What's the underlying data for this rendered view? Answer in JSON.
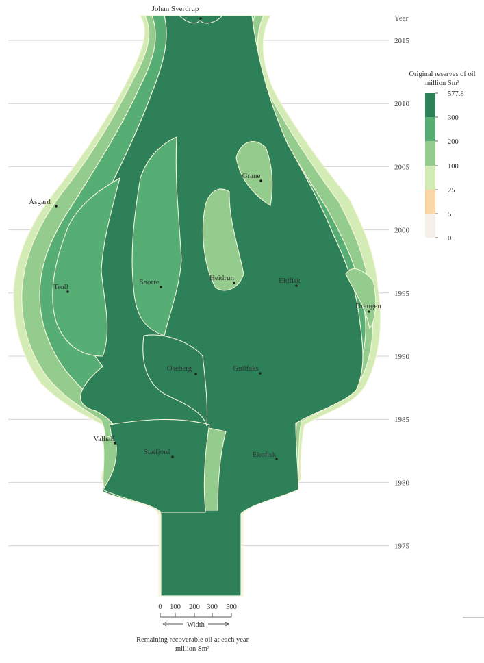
{
  "chart_data": {
    "type": "area",
    "y_axis": {
      "title": "Year",
      "ticks": [
        1975,
        1980,
        1985,
        1990,
        1995,
        2000,
        2005,
        2010,
        2015
      ],
      "range": [
        1971,
        2018
      ]
    },
    "fields": [
      {
        "name": "Johan Sverdrup",
        "label_year": 2018,
        "color": "#2e8059"
      },
      {
        "name": "Åsgard",
        "label_year": 2001.5,
        "color": "#93cc8c"
      },
      {
        "name": "Grane",
        "label_year": 2004.5,
        "color": "#93cc8c"
      },
      {
        "name": "Troll",
        "label_year": 1995.5,
        "color": "#57ae74"
      },
      {
        "name": "Snorre",
        "label_year": 1995.7,
        "color": "#57ae74"
      },
      {
        "name": "Heidrun",
        "label_year": 1995.8,
        "color": "#93cc8c"
      },
      {
        "name": "Eldfisk",
        "label_year": 1995.7,
        "color": "#2e8059"
      },
      {
        "name": "Draugen",
        "label_year": 1994.2,
        "color": "#93cc8c"
      },
      {
        "name": "Oseberg",
        "label_year": 1988.8,
        "color": "#2e8059"
      },
      {
        "name": "Gullfaks",
        "label_year": 1988.8,
        "color": "#2e8059"
      },
      {
        "name": "Valhall",
        "label_year": 1983.2,
        "color": "#93cc8c"
      },
      {
        "name": "Statfjord",
        "label_year": 1982.2,
        "color": "#2e8059"
      },
      {
        "name": "Ekofisk",
        "label_year": 1982,
        "color": "#2e8059"
      }
    ],
    "legend": {
      "title_line1": "Original reserves of oil",
      "title_line2": "million Sm³",
      "placement": "right",
      "bins": [
        {
          "from": 300,
          "to": 577.8,
          "color": "#2e8059"
        },
        {
          "from": 200,
          "to": 300,
          "color": "#57ae74"
        },
        {
          "from": 100,
          "to": 200,
          "color": "#93cc8c"
        },
        {
          "from": 25,
          "to": 100,
          "color": "#d3ebb4"
        },
        {
          "from": 5,
          "to": 25,
          "color": "#fbd6a6"
        },
        {
          "from": 0,
          "to": 5,
          "color": "#f5f1ea"
        }
      ],
      "labels": [
        "577.8",
        "300",
        "200",
        "100",
        "25",
        "5",
        "0"
      ]
    },
    "width_scale": {
      "ticks": [
        "0",
        "100",
        "200",
        "300",
        "500"
      ],
      "arrow_label": "Width",
      "caption_line1": "Remaining recoverable oil at each year",
      "caption_line2": "million Sm³"
    }
  }
}
